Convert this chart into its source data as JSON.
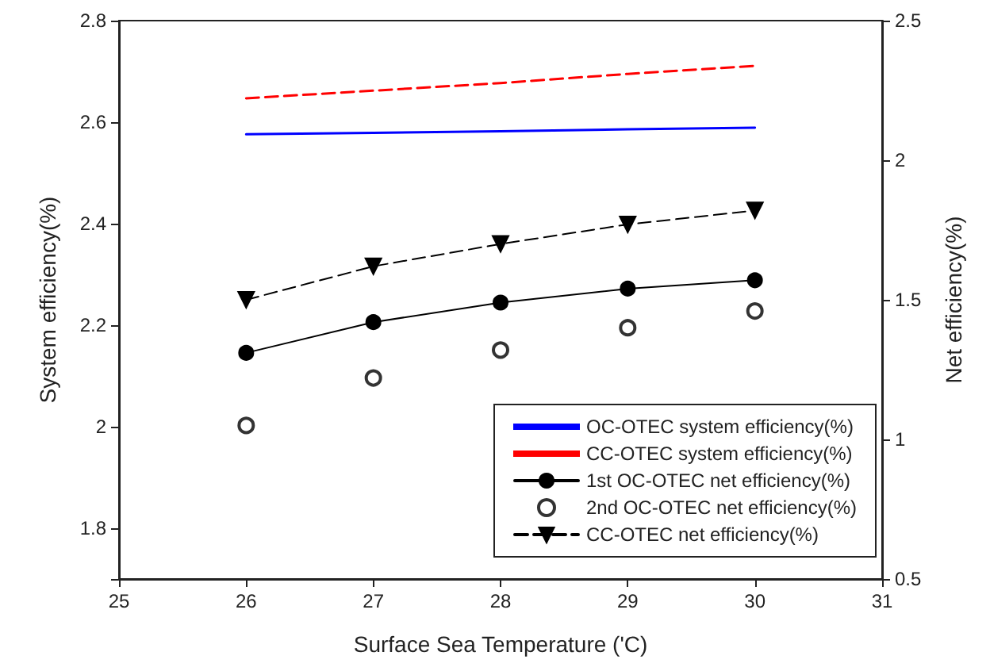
{
  "chart_data": {
    "type": "line",
    "xlabel": "Surface Sea Temperature ('C)",
    "ylabel": "System efficiency(%)",
    "y2label": "Net efficiency(%)",
    "x": [
      26,
      27,
      28,
      29,
      30
    ],
    "xlim": [
      25,
      31
    ],
    "xticks": [
      25,
      26,
      27,
      28,
      29,
      30,
      31
    ],
    "ylim": [
      1.7,
      2.8
    ],
    "yticks": [
      {
        "value": 1.7,
        "label": null
      },
      1.8,
      2.0,
      2.2,
      2.4,
      2.6,
      2.8
    ],
    "y2lim": [
      0.5,
      2.5
    ],
    "y2ticks": [
      0.5,
      1.0,
      1.5,
      2.0,
      2.5
    ],
    "grid": false,
    "legend": "bottom right",
    "series": [
      {
        "name": "OC-OTEC system efficiency(%)",
        "color": "#0000ff",
        "values": [
          2.576,
          2.579,
          2.582,
          2.586,
          2.589
        ],
        "marker": "none",
        "line_style": "solid"
      },
      {
        "name": "CC-OTEC system efficiency(%)",
        "color": "#ff0000",
        "values": [
          2.647,
          2.662,
          2.677,
          2.695,
          2.711
        ],
        "marker": "none",
        "line_style": "dashed"
      },
      {
        "name": "1st OC-OTEC net efficiency(%)",
        "color": "#000000",
        "values": [
          1.31,
          1.42,
          1.49,
          1.54,
          1.57
        ],
        "marker": "circle",
        "line_style": "solid",
        "axis": "y2"
      },
      {
        "name": "2nd OC-OTEC net efficiency(%)",
        "type": "scatter",
        "color": "#000000",
        "values": [
          1.05,
          1.22,
          1.32,
          1.4,
          1.46
        ],
        "marker": "circle",
        "axis": "y2"
      },
      {
        "name": "CC-OTEC net efficiency(%)",
        "color": "#000000",
        "values": [
          1.5,
          1.62,
          1.7,
          1.77,
          1.82
        ],
        "marker": "triangle",
        "line_style": "dashed",
        "axis": "y2"
      }
    ]
  }
}
